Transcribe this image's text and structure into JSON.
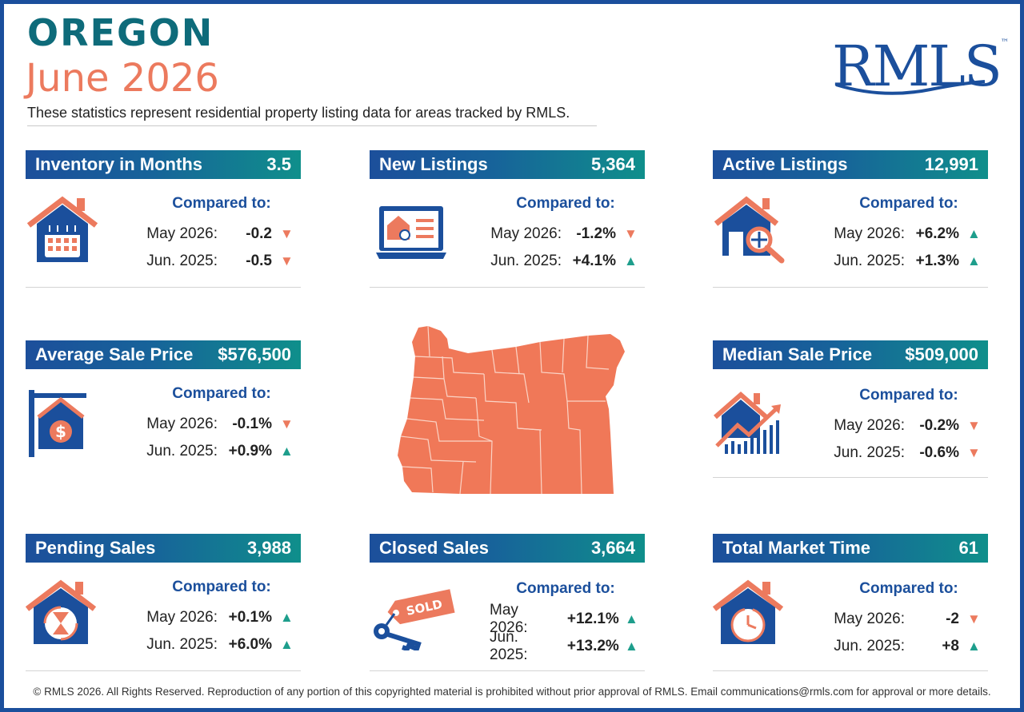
{
  "header": {
    "title": "OREGON",
    "subtitle": "June 2026",
    "description": "These statistics represent residential property listing data for areas tracked by RMLS.",
    "logo": "RMLS",
    "logo_tm": "™"
  },
  "compared_label": "Compared to:",
  "cards": {
    "inventory": {
      "label": "Inventory in Months",
      "value": "3.5",
      "rows": [
        {
          "label": "May 2026:",
          "value": "-0.2",
          "dir": "down"
        },
        {
          "label": "Jun. 2025:",
          "value": "-0.5",
          "dir": "down"
        }
      ]
    },
    "new_listings": {
      "label": "New Listings",
      "value": "5,364",
      "rows": [
        {
          "label": "May 2026:",
          "value": "-1.2%",
          "dir": "down"
        },
        {
          "label": "Jun. 2025:",
          "value": "+4.1%",
          "dir": "up"
        }
      ]
    },
    "active_listings": {
      "label": "Active Listings",
      "value": "12,991",
      "rows": [
        {
          "label": "May 2026:",
          "value": "+6.2%",
          "dir": "up"
        },
        {
          "label": "Jun. 2025:",
          "value": "+1.3%",
          "dir": "up"
        }
      ]
    },
    "avg_price": {
      "label": "Average Sale Price",
      "value": "$576,500",
      "rows": [
        {
          "label": "May 2026:",
          "value": "-0.1%",
          "dir": "down"
        },
        {
          "label": "Jun. 2025:",
          "value": "+0.9%",
          "dir": "up"
        }
      ]
    },
    "median_price": {
      "label": "Median Sale Price",
      "value": "$509,000",
      "rows": [
        {
          "label": "May 2026:",
          "value": "-0.2%",
          "dir": "down"
        },
        {
          "label": "Jun. 2025:",
          "value": "-0.6%",
          "dir": "down"
        }
      ]
    },
    "pending": {
      "label": "Pending Sales",
      "value": "3,988",
      "rows": [
        {
          "label": "May 2026:",
          "value": "+0.1%",
          "dir": "up"
        },
        {
          "label": "Jun. 2025:",
          "value": "+6.0%",
          "dir": "up"
        }
      ]
    },
    "closed": {
      "label": "Closed Sales",
      "value": "3,664",
      "rows": [
        {
          "label": "May 2026:",
          "value": "+12.1%",
          "dir": "up"
        },
        {
          "label": "Jun. 2025:",
          "value": "+13.2%",
          "dir": "up"
        }
      ]
    },
    "market_time": {
      "label": "Total Market Time",
      "value": "61",
      "rows": [
        {
          "label": "May 2026:",
          "value": "-2",
          "dir": "down"
        },
        {
          "label": "Jun. 2025:",
          "value": "+8",
          "dir": "up"
        }
      ]
    }
  },
  "icons": {
    "inventory": "house-calendar-icon",
    "new_listings": "laptop-listing-icon",
    "active_listings": "house-magnifier-icon",
    "avg_price": "sale-sign-dollar-icon",
    "median_price": "house-chart-icon",
    "pending": "house-hourglass-icon",
    "closed": "sold-tag-keys-icon",
    "market_time": "house-clock-icon"
  },
  "sold_text": "SOLD",
  "footer": "© RMLS 2026. All Rights Reserved. Reproduction of any portion of this copyrighted material is prohibited without prior approval of RMLS. Email communications@rmls.com for approval or more details.",
  "colors": {
    "navy": "#1b4f9c",
    "teal": "#0e6b7a",
    "coral": "#ec7a5e",
    "green": "#1e9e8c"
  }
}
